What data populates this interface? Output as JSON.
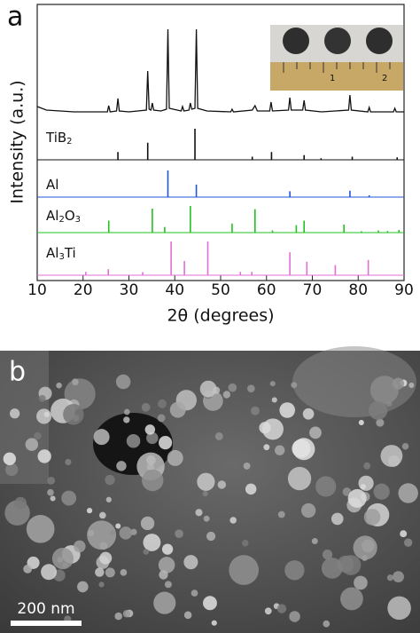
{
  "figure": {
    "panel_labels": [
      "a",
      "b"
    ],
    "inset_ruler_labels": [
      "1",
      "2"
    ],
    "scale_bar": "200 nm"
  },
  "chart_data": {
    "type": "xrd",
    "xlabel": "2θ (degrees)",
    "ylabel": "Intensity (a.u.)",
    "xlim": [
      10,
      90
    ],
    "xticks": [
      10,
      20,
      30,
      40,
      50,
      60,
      70,
      80,
      90
    ],
    "ylim": [
      0,
      100
    ],
    "series": [
      {
        "color": "#111111",
        "x": [
          10,
          12,
          15,
          18,
          21,
          24,
          25.3,
          25.6,
          25.9,
          27.3,
          27.6,
          27.9,
          30,
          33.8,
          34.1,
          34.4,
          34.8,
          35.1,
          35.4,
          37,
          38.2,
          38.5,
          38.8,
          41.4,
          41.7,
          42,
          43.1,
          43.4,
          43.7,
          44.4,
          44.7,
          45,
          47,
          52.2,
          52.5,
          52.8,
          56.9,
          57.5,
          58,
          60.7,
          61,
          61.3,
          64.8,
          65.1,
          65.4,
          67.9,
          68.2,
          68.5,
          72,
          77.9,
          78.2,
          78.5,
          82.1,
          82.4,
          82.7,
          87.7,
          88,
          88.3,
          90
        ],
        "values": [
          8,
          4,
          3,
          2,
          2,
          2,
          2,
          9,
          2,
          3,
          17,
          3,
          2,
          4,
          48,
          5,
          4,
          12,
          4,
          3,
          5,
          95,
          6,
          3,
          8,
          3,
          4,
          12,
          5,
          6,
          95,
          6,
          3,
          2,
          5,
          2,
          4,
          9,
          3,
          3,
          13,
          3,
          4,
          18,
          4,
          4,
          15,
          4,
          2,
          4,
          21,
          4,
          2,
          7,
          2,
          2,
          6,
          2,
          2
        ]
      },
      {
        "name": "TiB2",
        "color": "#111111",
        "x": [
          27.6,
          34.1,
          44.4,
          56.9,
          61.1,
          68.2,
          71.9,
          78.7,
          88.5
        ],
        "values": [
          25,
          55,
          100,
          10,
          25,
          15,
          5,
          10,
          8
        ]
      },
      {
        "name": "Al",
        "color": "#1f57d6",
        "x": [
          38.5,
          44.7,
          65.1,
          78.2,
          82.4
        ],
        "values": [
          100,
          47,
          22,
          24,
          7
        ]
      },
      {
        "name": "Al2O3",
        "color": "#22c21f",
        "x": [
          25.6,
          35.1,
          37.8,
          43.4,
          52.5,
          57.5,
          61.3,
          66.5,
          68.2,
          76.9,
          80.7,
          84.4,
          86.4,
          88.9
        ],
        "values": [
          45,
          90,
          21,
          100,
          34,
          88,
          8,
          28,
          45,
          30,
          5,
          8,
          6,
          10
        ]
      },
      {
        "name": "Al3Ti",
        "color": "#e26fd6",
        "x": [
          20.6,
          25.5,
          33,
          39.2,
          42.1,
          47.2,
          54.3,
          56.8,
          65.1,
          68.8,
          75,
          82.2
        ],
        "values": [
          10,
          18,
          9,
          100,
          42,
          100,
          10,
          10,
          68,
          40,
          30,
          45
        ]
      }
    ]
  }
}
